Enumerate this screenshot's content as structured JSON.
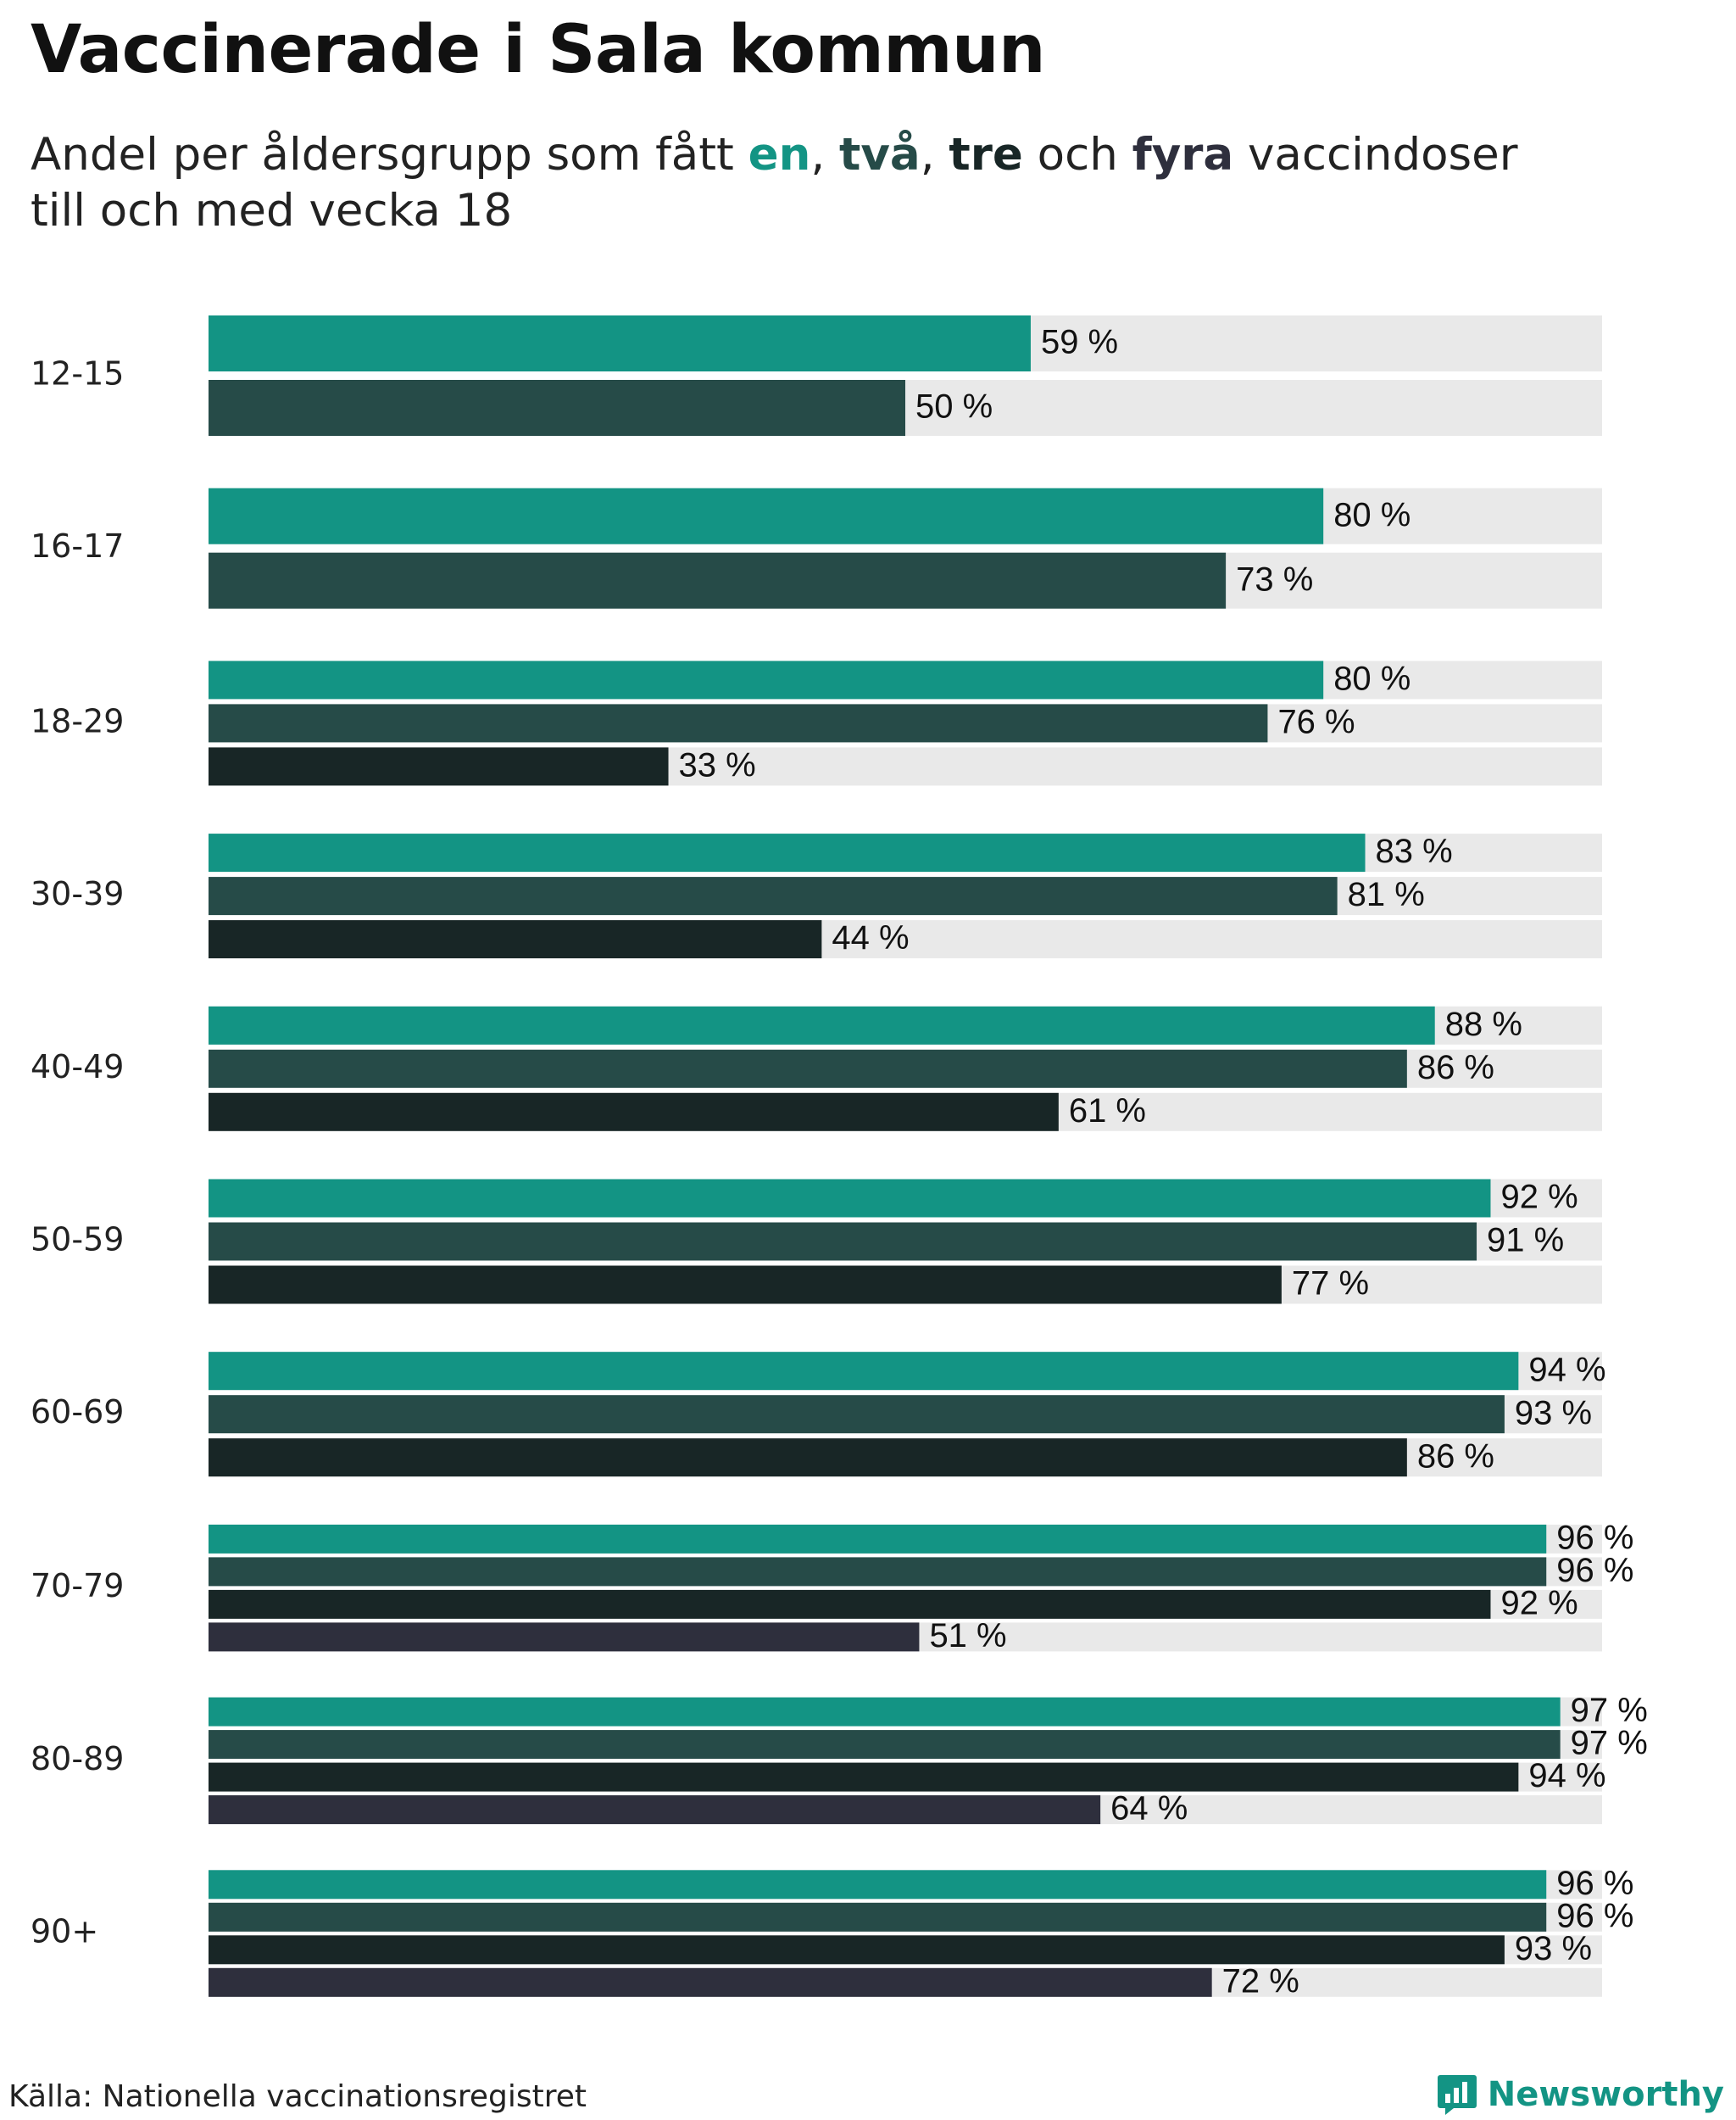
{
  "title": "Vaccinerade i Sala kommun",
  "subtitle": {
    "part1": "Andel per åldersgrupp som fått ",
    "k1": "en",
    "sep1": ", ",
    "k2": "två",
    "sep2": ", ",
    "k3": "tre",
    "part2": " och ",
    "k4": "fyra",
    "part3": " vaccindoser",
    "line2": "till och med vecka 18"
  },
  "source": "Källa: Nationella vaccinationsregistret",
  "brand": {
    "name": "Newsworthy",
    "icon": "newsworthy-logo-icon"
  },
  "colors": {
    "dose1": "#139484",
    "dose2": "#264b48",
    "dose3": "#182626",
    "dose4": "#2e2f3d",
    "track": "#e9e9e9",
    "brand": "#139484"
  },
  "chart_data": {
    "type": "bar",
    "orientation": "horizontal",
    "value_suffix": " %",
    "xlim": [
      0,
      100
    ],
    "grid": false,
    "legend": "none",
    "categories": [
      "12-15",
      "16-17",
      "18-29",
      "30-39",
      "40-49",
      "50-59",
      "60-69",
      "70-79",
      "80-89",
      "90+"
    ],
    "series": [
      {
        "name": "en",
        "values": [
          59,
          80,
          80,
          83,
          88,
          92,
          94,
          96,
          97,
          96
        ]
      },
      {
        "name": "två",
        "values": [
          50,
          73,
          76,
          81,
          86,
          91,
          93,
          96,
          97,
          96
        ]
      },
      {
        "name": "tre",
        "values": [
          null,
          null,
          33,
          44,
          61,
          77,
          86,
          92,
          94,
          93
        ]
      },
      {
        "name": "fyra",
        "values": [
          null,
          null,
          null,
          null,
          null,
          null,
          null,
          51,
          64,
          72
        ]
      }
    ]
  }
}
